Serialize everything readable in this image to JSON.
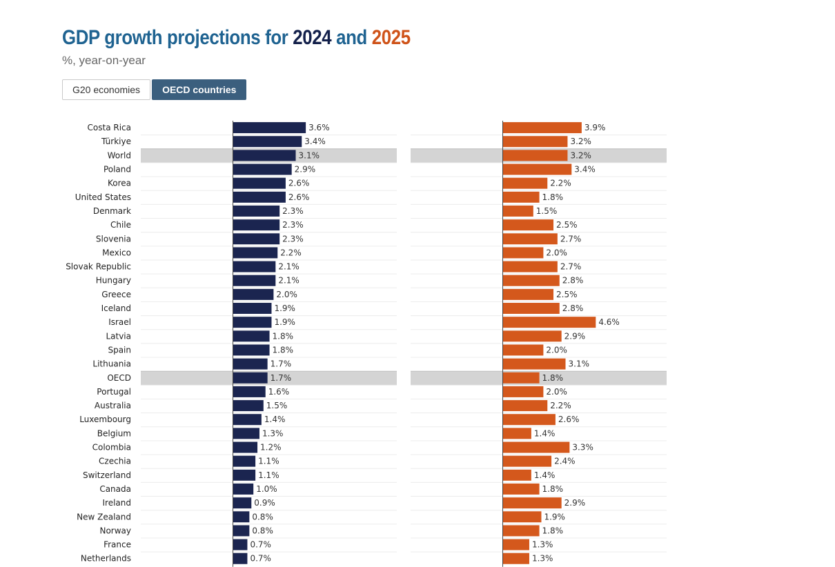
{
  "title": {
    "prefix": "GDP growth projections for ",
    "year1": "2024",
    "middle": " and ",
    "year2": "2025"
  },
  "subtitle": "%, year-on-year",
  "tabs": [
    {
      "label": "G20 economies",
      "active": false
    },
    {
      "label": "OECD countries",
      "active": true
    }
  ],
  "colors": {
    "series_2024": "#1b2550",
    "series_2025": "#d4581c",
    "highlight_row": "#d4d4d4",
    "title_main": "#1f6391"
  },
  "chart_data": {
    "type": "bar",
    "orientation": "horizontal",
    "categories": [
      "Costa Rica",
      "Türkiye",
      "World",
      "Poland",
      "Korea",
      "United States",
      "Denmark",
      "Chile",
      "Slovenia",
      "Mexico",
      "Slovak Republic",
      "Hungary",
      "Greece",
      "Iceland",
      "Israel",
      "Latvia",
      "Spain",
      "Lithuania",
      "OECD",
      "Portugal",
      "Australia",
      "Luxembourg",
      "Belgium",
      "Colombia",
      "Czechia",
      "Switzerland",
      "Canada",
      "Ireland",
      "New Zealand",
      "Norway",
      "France",
      "Netherlands"
    ],
    "highlighted": [
      "World",
      "OECD"
    ],
    "series": [
      {
        "name": "2024",
        "values": [
          3.6,
          3.4,
          3.1,
          2.9,
          2.6,
          2.6,
          2.3,
          2.3,
          2.3,
          2.2,
          2.1,
          2.1,
          2.0,
          1.9,
          1.9,
          1.8,
          1.8,
          1.7,
          1.7,
          1.6,
          1.5,
          1.4,
          1.3,
          1.2,
          1.1,
          1.1,
          1.0,
          0.9,
          0.8,
          0.8,
          0.7,
          0.7
        ],
        "labels": [
          "3.6%",
          "3.4%",
          "3.1%",
          "2.9%",
          "2.6%",
          "2.6%",
          "2.3%",
          "2.3%",
          "2.3%",
          "2.2%",
          "2.1%",
          "2.1%",
          "2.0%",
          "1.9%",
          "1.9%",
          "1.8%",
          "1.8%",
          "1.7%",
          "1.7%",
          "1.6%",
          "1.5%",
          "1.4%",
          "1.3%",
          "1.2%",
          "1.1%",
          "1.1%",
          "1.0%",
          "0.9%",
          "0.8%",
          "0.8%",
          "0.7%",
          "0.7%"
        ]
      },
      {
        "name": "2025",
        "values": [
          3.9,
          3.2,
          3.2,
          3.4,
          2.2,
          1.8,
          1.5,
          2.5,
          2.7,
          2.0,
          2.7,
          2.8,
          2.5,
          2.8,
          4.6,
          2.9,
          2.0,
          3.1,
          1.8,
          2.0,
          2.2,
          2.6,
          1.4,
          3.3,
          2.4,
          1.4,
          1.8,
          2.9,
          1.9,
          1.8,
          1.3,
          1.3
        ],
        "labels": [
          "3.9%",
          "3.2%",
          "3.2%",
          "3.4%",
          "2.2%",
          "1.8%",
          "1.5%",
          "2.5%",
          "2.7%",
          "2.0%",
          "2.7%",
          "2.8%",
          "2.5%",
          "2.8%",
          "4.6%",
          "2.9%",
          "2.0%",
          "3.1%",
          "1.8%",
          "2.0%",
          "2.2%",
          "2.6%",
          "1.4%",
          "3.3%",
          "2.4%",
          "1.4%",
          "1.8%",
          "2.9%",
          "1.9%",
          "1.8%",
          "1.3%",
          "1.3%"
        ]
      }
    ]
  }
}
